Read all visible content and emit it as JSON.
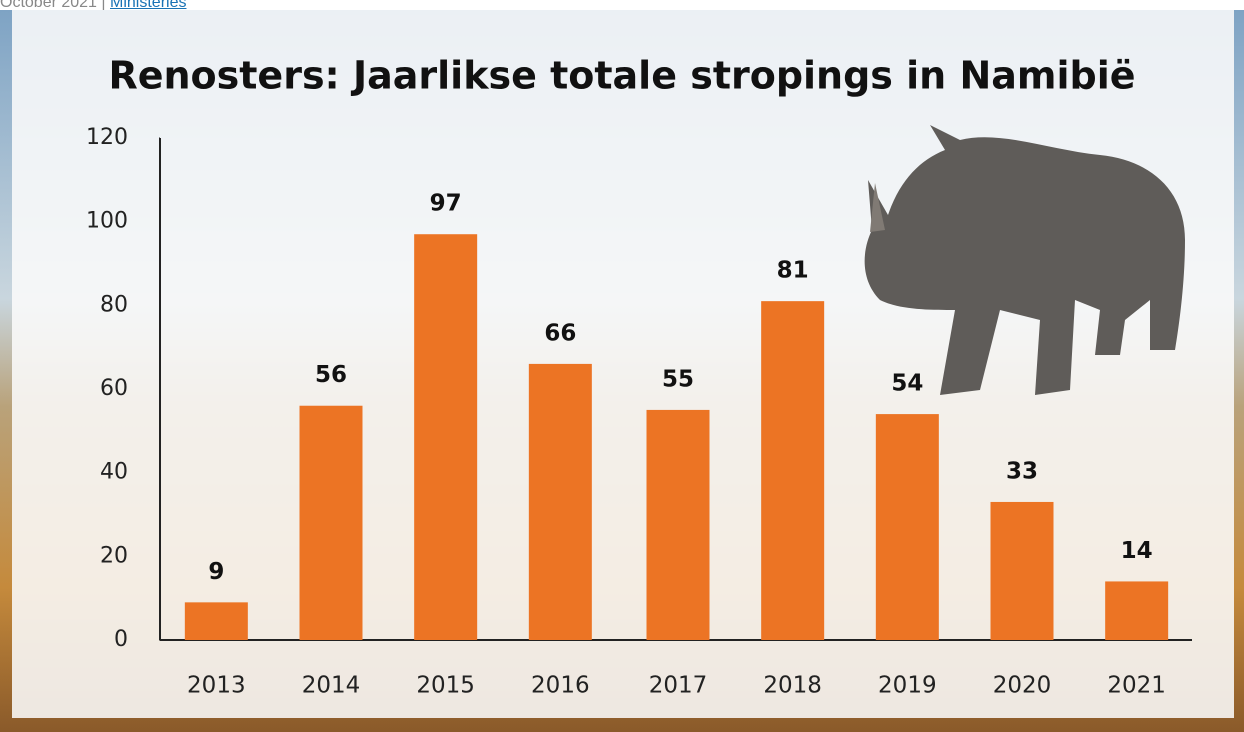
{
  "source_line": {
    "date": "October 2021 |",
    "link": "Ministeries"
  },
  "chart_data": {
    "type": "bar",
    "title": "Renosters: Jaarlikse totale stropings in Namibië",
    "categories": [
      "2013",
      "2014",
      "2015",
      "2016",
      "2017",
      "2018",
      "2019",
      "2020",
      "2021"
    ],
    "values": [
      9,
      56,
      97,
      66,
      55,
      81,
      54,
      33,
      14
    ],
    "color": "#ec7424",
    "ylim": [
      0,
      120
    ],
    "yticks": [
      0,
      20,
      40,
      60,
      80,
      100,
      120
    ],
    "grid": false,
    "show_value_labels": true
  }
}
